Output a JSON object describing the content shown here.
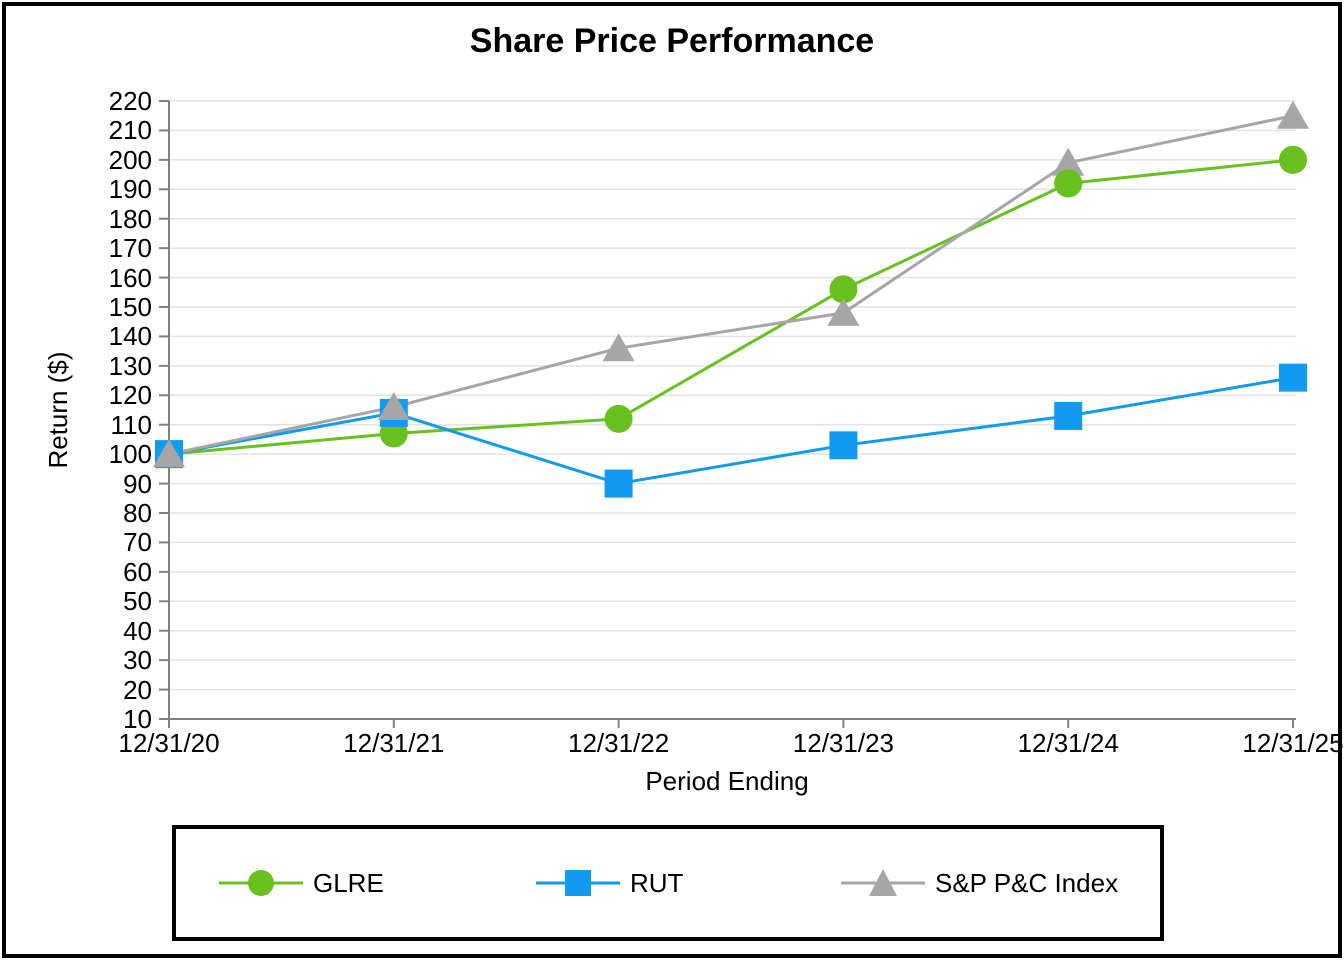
{
  "figure": {
    "title": "Share Price Performance"
  },
  "chart_data": {
    "type": "line",
    "title": "Share Price Performance",
    "xlabel": "Period Ending",
    "ylabel": "Return ($)",
    "x_categories": [
      "12/31/20",
      "12/31/21",
      "12/31/22",
      "12/31/23",
      "12/31/24",
      "12/31/25"
    ],
    "ylim": [
      10,
      220
    ],
    "ytick_step": 10,
    "yticks": [
      220,
      210,
      200,
      190,
      180,
      170,
      160,
      150,
      140,
      130,
      120,
      110,
      100,
      90,
      80,
      70,
      60,
      50,
      40,
      30,
      20,
      10
    ],
    "grid": true,
    "legend_position": "bottom-boxed",
    "series": [
      {
        "name": "GLRE",
        "marker": "circle",
        "color": "#69C120",
        "values": [
          100,
          107,
          112,
          156,
          192,
          200
        ]
      },
      {
        "name": "RUT",
        "marker": "square",
        "color": "#119BF0",
        "values": [
          100,
          114,
          90,
          103,
          113,
          126
        ]
      },
      {
        "name": "S&P P&C Index",
        "marker": "triangle",
        "color": "#A6A6A6",
        "values": [
          100,
          116,
          136,
          148,
          199,
          215
        ]
      }
    ],
    "colors": {
      "gridline": "#E3E3E3",
      "axis": "#808080",
      "text": "#000000",
      "border": "#000000"
    }
  }
}
